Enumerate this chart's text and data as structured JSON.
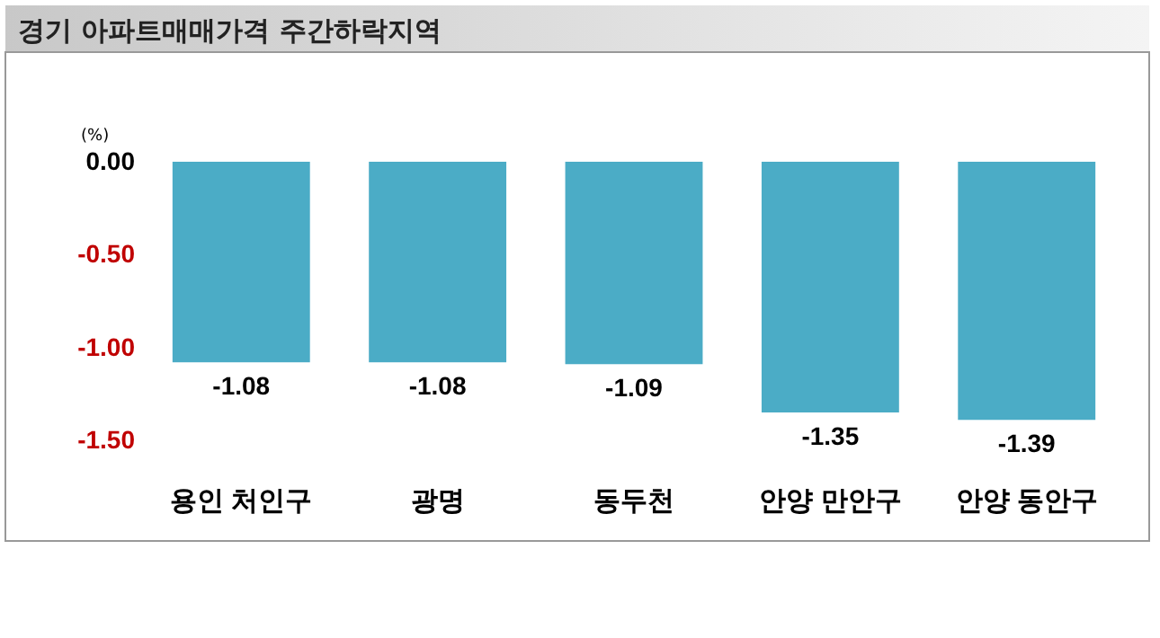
{
  "chart_data": {
    "type": "bar",
    "title": "경기 아파트매매가격 주간하락지역",
    "ylabel": "(%)",
    "categories": [
      "용인 처인구",
      "광명",
      "동두천",
      "안양 만안구",
      "안양 동안구"
    ],
    "values": [
      -1.08,
      -1.08,
      -1.09,
      -1.35,
      -1.39
    ],
    "color": "#4bacc6",
    "ylim": [
      -1.5,
      0
    ],
    "yticks": [
      {
        "value": 0,
        "label": "0.00"
      },
      {
        "value": -0.5,
        "label": "-0.50"
      },
      {
        "value": -1,
        "label": "-1.00"
      },
      {
        "value": -1.5,
        "label": "-1.50"
      }
    ],
    "data_labels": true,
    "grid": false
  }
}
